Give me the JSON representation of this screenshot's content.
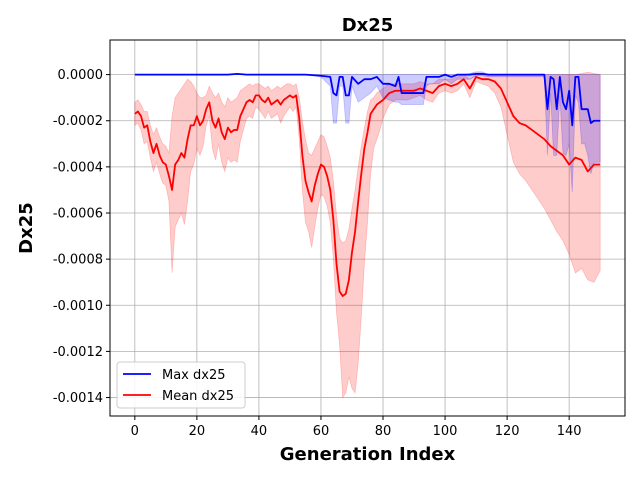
{
  "chart_data": {
    "type": "line",
    "title": "Dx25",
    "xlabel": "Generation Index",
    "ylabel": "Dx25",
    "xlim": [
      -8,
      158
    ],
    "ylim": [
      -0.00148,
      0.00015
    ],
    "xticks": [
      0,
      20,
      40,
      60,
      80,
      100,
      120,
      140
    ],
    "yticks": [
      0.0,
      -0.0002,
      -0.0004,
      -0.0006,
      -0.0008,
      -0.001,
      -0.0012,
      -0.0014
    ],
    "ytick_labels": [
      "0.0000",
      "-0.0002",
      "-0.0004",
      "-0.0006",
      "-0.0008",
      "-0.0010",
      "-0.0012",
      "-0.0014"
    ],
    "grid": true,
    "legend": "lower-left",
    "series": [
      {
        "name": "Max dx25",
        "color": "#0000ff",
        "band_color": "#0000ff",
        "x": [
          0,
          10,
          20,
          30,
          33,
          36,
          40,
          50,
          55,
          60,
          63,
          64,
          65,
          66,
          67,
          68,
          69,
          70,
          72,
          74,
          76,
          78,
          80,
          82,
          84,
          85,
          86,
          88,
          90,
          92,
          93,
          94,
          95,
          96,
          98,
          100,
          102,
          104,
          106,
          108,
          110,
          112,
          114,
          116,
          118,
          120,
          125,
          130,
          132,
          133,
          134,
          135,
          136,
          137,
          138,
          139,
          140,
          141,
          142,
          143,
          144,
          145,
          146,
          147,
          148,
          150
        ],
        "values": [
          0.0,
          0.0,
          0.0,
          0.0,
          3e-06,
          0.0,
          0.0,
          0.0,
          0.0,
          -5e-06,
          -1e-05,
          -8e-05,
          -9e-05,
          -1e-05,
          -1e-05,
          -9e-05,
          -9e-05,
          -1e-05,
          -4e-05,
          -2e-05,
          -2e-05,
          -1e-05,
          -4e-05,
          -4e-05,
          -5e-05,
          -1e-05,
          -8e-05,
          -8e-05,
          -8e-05,
          -8e-05,
          -8e-05,
          -1e-05,
          -1e-05,
          -1e-05,
          -1e-05,
          0.0,
          -1e-05,
          0.0,
          0.0,
          0.0,
          3e-06,
          3e-06,
          0.0,
          0.0,
          0.0,
          0.0,
          0.0,
          0.0,
          0.0,
          -0.00015,
          -1e-05,
          -2e-05,
          -0.00015,
          -1e-05,
          -0.00012,
          -0.00015,
          -7e-05,
          -0.00022,
          -1e-05,
          -1e-05,
          -0.00015,
          -0.00015,
          -0.00015,
          -0.00021,
          -0.0002,
          -0.0002
        ],
        "upper": [
          0.0,
          0.0,
          0.0,
          0.0,
          3e-06,
          0.0,
          0.0,
          0.0,
          0.0,
          0.0,
          0.0,
          0.0,
          0.0,
          0.0,
          0.0,
          0.0,
          0.0,
          0.0,
          0.0,
          0.0,
          0.0,
          0.0,
          0.0,
          0.0,
          0.0,
          0.0,
          0.0,
          0.0,
          0.0,
          0.0,
          0.0,
          0.0,
          0.0,
          0.0,
          0.0,
          0.0,
          0.0,
          0.0,
          0.0,
          5e-06,
          1.2e-05,
          1.2e-05,
          0.0,
          0.0,
          0.0,
          0.0,
          0.0,
          0.0,
          0.0,
          0.0,
          0.0,
          0.0,
          0.0,
          0.0,
          0.0,
          0.0,
          0.0,
          0.0,
          0.0,
          0.0,
          0.0,
          0.0,
          0.0,
          0.0,
          0.0,
          0.0
        ],
        "lower": [
          0.0,
          0.0,
          0.0,
          0.0,
          3e-06,
          0.0,
          0.0,
          0.0,
          0.0,
          -1e-05,
          -5e-05,
          -0.00021,
          -0.00021,
          -5e-05,
          -5e-05,
          -0.00021,
          -0.00021,
          -5e-05,
          -0.00012,
          -0.0001,
          -8e-05,
          -5e-05,
          -0.0001,
          -0.00011,
          -0.00012,
          -0.00012,
          -0.00013,
          -0.00013,
          -0.00013,
          -0.00013,
          -0.00013,
          -5e-05,
          -4e-05,
          -4e-05,
          -4e-05,
          -2e-05,
          -4e-05,
          -2e-05,
          -2e-05,
          -2e-05,
          -5e-06,
          -5e-06,
          -1e-05,
          -1e-05,
          -1e-05,
          -1e-05,
          -1e-05,
          -1e-05,
          -1e-05,
          -0.00035,
          -8e-05,
          -0.00035,
          -0.00035,
          -9e-05,
          -0.00034,
          -0.00035,
          -0.0003,
          -0.00051,
          -9e-05,
          -0.00012,
          -0.0003,
          -0.0003,
          -0.00035,
          -0.00043,
          -0.00038,
          -0.00038
        ]
      },
      {
        "name": "Mean dx25",
        "color": "#ff0000",
        "band_color": "#ff0000",
        "x": [
          0,
          1,
          2,
          3,
          4,
          5,
          6,
          7,
          8,
          9,
          10,
          11,
          12,
          13,
          14,
          15,
          16,
          17,
          18,
          19,
          20,
          21,
          22,
          23,
          24,
          25,
          26,
          27,
          28,
          29,
          30,
          31,
          32,
          33,
          34,
          35,
          36,
          37,
          38,
          39,
          40,
          41,
          42,
          43,
          44,
          45,
          46,
          47,
          48,
          49,
          50,
          51,
          52,
          53,
          54,
          55,
          56,
          57,
          58,
          59,
          60,
          61,
          62,
          63,
          64,
          65,
          66,
          67,
          68,
          69,
          70,
          71,
          72,
          73,
          74,
          75,
          76,
          77,
          78,
          79,
          80,
          82,
          84,
          86,
          88,
          90,
          92,
          94,
          96,
          98,
          100,
          102,
          104,
          106,
          108,
          110,
          112,
          114,
          116,
          118,
          120,
          122,
          124,
          126,
          128,
          130,
          132,
          134,
          136,
          138,
          140,
          142,
          144,
          146,
          148,
          150
        ],
        "values": [
          -0.00017,
          -0.00016,
          -0.00018,
          -0.00023,
          -0.00022,
          -0.00029,
          -0.00034,
          -0.0003,
          -0.00035,
          -0.00038,
          -0.00039,
          -0.00044,
          -0.0005,
          -0.00039,
          -0.00037,
          -0.00034,
          -0.00036,
          -0.00028,
          -0.00022,
          -0.00022,
          -0.00018,
          -0.00022,
          -0.0002,
          -0.00015,
          -0.00012,
          -0.0002,
          -0.00023,
          -0.00019,
          -0.00025,
          -0.00028,
          -0.00023,
          -0.00025,
          -0.00024,
          -0.00024,
          -0.00018,
          -0.00015,
          -0.00012,
          -0.00011,
          -0.00012,
          -9e-05,
          -9e-05,
          -0.00011,
          -0.00012,
          -0.0001,
          -0.00013,
          -0.00012,
          -0.00011,
          -0.00013,
          -0.00011,
          -0.0001,
          -9e-05,
          -0.0001,
          -9e-05,
          -0.00019,
          -0.00035,
          -0.00046,
          -0.00051,
          -0.00055,
          -0.00048,
          -0.00043,
          -0.00039,
          -0.0004,
          -0.00044,
          -0.0005,
          -0.00063,
          -0.00082,
          -0.00094,
          -0.00096,
          -0.00095,
          -0.00089,
          -0.00077,
          -0.00068,
          -0.00055,
          -0.00043,
          -0.00032,
          -0.00025,
          -0.00017,
          -0.00015,
          -0.00013,
          -0.00012,
          -0.00011,
          -8e-05,
          -7e-05,
          -7e-05,
          -7e-05,
          -7e-05,
          -6e-05,
          -7e-05,
          -8e-05,
          -5e-05,
          -4e-05,
          -5e-05,
          -4e-05,
          -2e-05,
          -6e-05,
          -1e-05,
          -2e-05,
          -2e-05,
          -3e-05,
          -6e-05,
          -0.00012,
          -0.00018,
          -0.00021,
          -0.00022,
          -0.00024,
          -0.00026,
          -0.00028,
          -0.00031,
          -0.00033,
          -0.00035,
          -0.00039,
          -0.00036,
          -0.00037,
          -0.00042,
          -0.00039,
          -0.00039
        ],
        "upper": [
          -0.00012,
          -0.00011,
          -0.00013,
          -0.00016,
          -0.00016,
          -0.00022,
          -0.00026,
          -0.00023,
          -0.00027,
          -0.0003,
          -0.00031,
          -0.00034,
          -0.00018,
          -0.0001,
          -8e-05,
          -6e-05,
          -4e-05,
          -2e-05,
          -3e-05,
          -5e-05,
          -8e-05,
          -0.0001,
          -0.0001,
          -9e-05,
          -5e-05,
          -8e-05,
          -0.0001,
          -8e-05,
          -0.00012,
          -0.00014,
          -0.0001,
          -0.00012,
          -0.00011,
          -0.0001,
          -7e-05,
          -6e-05,
          -5e-05,
          -4e-05,
          -5e-05,
          -4e-05,
          -4e-05,
          -5e-05,
          -6e-05,
          -5e-05,
          -7e-05,
          -6e-05,
          -5e-05,
          -6e-05,
          -5e-05,
          -4e-05,
          -4e-05,
          -5e-05,
          -4e-05,
          -0.0001,
          -0.0002,
          -0.00028,
          -0.00034,
          -0.00035,
          -0.00032,
          -0.00029,
          -0.00026,
          -0.00027,
          -0.00031,
          -0.00036,
          -0.00046,
          -0.00061,
          -0.00071,
          -0.00073,
          -0.00072,
          -0.00067,
          -0.00058,
          -0.0005,
          -0.0004,
          -0.00031,
          -0.00023,
          -0.00016,
          -0.00011,
          -0.0001,
          -8e-05,
          -7e-05,
          -6e-05,
          -4e-05,
          -4e-05,
          -4e-05,
          -4e-05,
          -4e-05,
          -3e-05,
          -4e-05,
          -4e-05,
          -2e-05,
          -2e-05,
          -2e-05,
          -1e-05,
          0.0,
          -2e-05,
          0.0,
          0.0,
          0.0,
          0.0,
          0.0,
          0.0,
          0.0,
          0.0,
          0.0,
          0.0,
          0.0,
          0.0,
          0.0,
          0.0,
          0.0,
          0.0,
          0.0,
          5e-06,
          1e-05,
          5e-06,
          0.0
        ],
        "lower": [
          -0.00022,
          -0.00021,
          -0.00024,
          -0.0003,
          -0.00029,
          -0.00036,
          -0.00042,
          -0.00038,
          -0.00043,
          -0.00047,
          -0.00048,
          -0.00055,
          -0.00086,
          -0.00066,
          -0.00063,
          -0.0006,
          -0.00065,
          -0.00055,
          -0.00042,
          -0.00039,
          -0.00032,
          -0.00035,
          -0.00031,
          -0.00022,
          -0.00018,
          -0.00032,
          -0.00037,
          -0.0003,
          -0.00038,
          -0.00042,
          -0.00036,
          -0.00038,
          -0.00037,
          -0.00038,
          -0.00029,
          -0.00024,
          -0.00019,
          -0.00018,
          -0.00019,
          -0.00014,
          -0.00015,
          -0.00017,
          -0.00019,
          -0.00016,
          -0.00019,
          -0.00018,
          -0.00017,
          -0.00021,
          -0.00018,
          -0.00016,
          -0.00014,
          -0.00016,
          -0.00014,
          -0.00028,
          -0.0005,
          -0.00064,
          -0.00068,
          -0.00075,
          -0.00066,
          -0.00058,
          -0.00052,
          -0.00053,
          -0.00057,
          -0.00064,
          -0.0008,
          -0.00103,
          -0.00117,
          -0.0014,
          -0.00138,
          -0.00131,
          -0.00136,
          -0.00138,
          -0.00125,
          -0.00105,
          -0.00082,
          -0.00064,
          -0.00043,
          -0.00032,
          -0.00028,
          -0.00024,
          -0.00019,
          -0.00013,
          -0.00011,
          -0.00011,
          -0.00011,
          -0.0001,
          -9e-05,
          -0.00011,
          -0.00012,
          -8e-05,
          -7e-05,
          -8e-05,
          -7e-05,
          -4e-05,
          -0.0001,
          -3e-05,
          -4e-05,
          -5e-05,
          -8e-05,
          -0.00014,
          -0.00026,
          -0.00038,
          -0.00043,
          -0.00046,
          -0.0005,
          -0.00054,
          -0.00058,
          -0.00063,
          -0.00068,
          -0.00072,
          -0.00078,
          -0.00086,
          -0.00084,
          -0.00089,
          -0.0009,
          -0.00085
        ]
      }
    ]
  }
}
